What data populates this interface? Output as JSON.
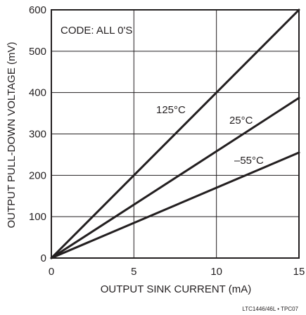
{
  "chart_data": {
    "type": "line",
    "title": "",
    "xlabel": "OUTPUT SINK CURRENT (mA)",
    "ylabel": "OUTPUT PULL-DOWN VOLTAGE (mV)",
    "xlim": [
      0,
      15
    ],
    "ylim": [
      0,
      600
    ],
    "xticks": [
      0,
      5,
      10,
      15
    ],
    "yticks": [
      0,
      100,
      200,
      300,
      400,
      500,
      600
    ],
    "grid": true,
    "annotation": "CODE: ALL 0'S",
    "footer": "LTC1446/46L • TPC07",
    "line_color": "#231f20",
    "series": [
      {
        "name": "125°C",
        "x": [
          0,
          15
        ],
        "y": [
          0,
          600
        ]
      },
      {
        "name": "25°C",
        "x": [
          0,
          15
        ],
        "y": [
          0,
          387
        ]
      },
      {
        "name": "–55°C",
        "x": [
          0,
          15
        ],
        "y": [
          0,
          255
        ]
      }
    ]
  }
}
